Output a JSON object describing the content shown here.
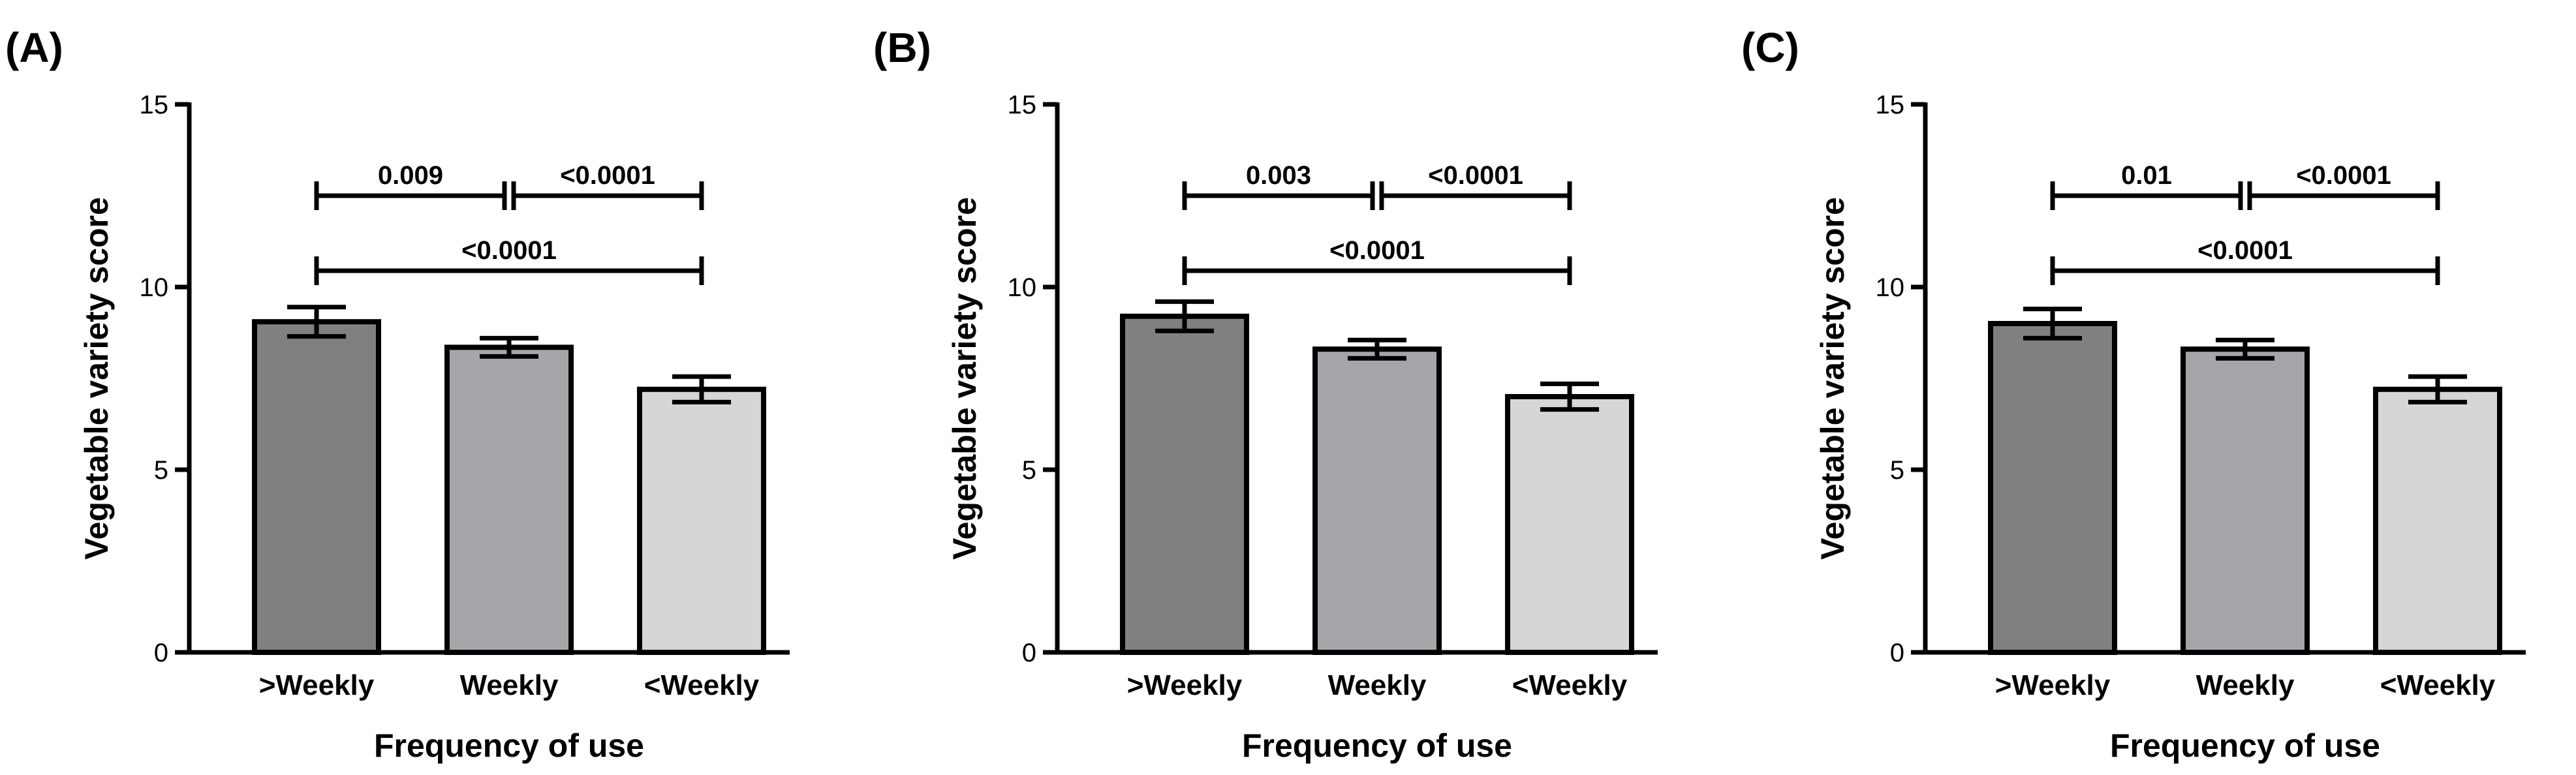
{
  "chart_data": [
    {
      "type": "bar",
      "panel": "(A)",
      "categories": [
        ">Weekly",
        "Weekly",
        "<Weekly"
      ],
      "values": [
        9.05,
        8.35,
        7.2
      ],
      "errors": [
        0.4,
        0.25,
        0.35
      ],
      "colors": [
        "#808080",
        "#a5a5aa",
        "#d6d6d6"
      ],
      "xlabel": "Frequency of use",
      "ylabel": "Vegetable variety score",
      "ylim": [
        0,
        15
      ],
      "yticks": [
        "0",
        "5",
        "10",
        "15"
      ],
      "comparisons": [
        {
          "from": 0,
          "to": 1,
          "label": "0.009",
          "row": 1
        },
        {
          "from": 1,
          "to": 2,
          "label": "<0.0001",
          "row": 1
        },
        {
          "from": 0,
          "to": 2,
          "label": "<0.0001",
          "row": 0
        }
      ]
    },
    {
      "type": "bar",
      "panel": "(B)",
      "categories": [
        ">Weekly",
        "Weekly",
        "<Weekly"
      ],
      "values": [
        9.2,
        8.3,
        7.0
      ],
      "errors": [
        0.4,
        0.25,
        0.35
      ],
      "colors": [
        "#808080",
        "#a5a5aa",
        "#d6d6d6"
      ],
      "xlabel": "Frequency of use",
      "ylabel": "Vegetable variety score",
      "ylim": [
        0,
        15
      ],
      "yticks": [
        "0",
        "5",
        "10",
        "15"
      ],
      "comparisons": [
        {
          "from": 0,
          "to": 1,
          "label": "0.003",
          "row": 1
        },
        {
          "from": 1,
          "to": 2,
          "label": "<0.0001",
          "row": 1
        },
        {
          "from": 0,
          "to": 2,
          "label": "<0.0001",
          "row": 0
        }
      ]
    },
    {
      "type": "bar",
      "panel": "(C)",
      "categories": [
        ">Weekly",
        "Weekly",
        "<Weekly"
      ],
      "values": [
        9.0,
        8.3,
        7.2
      ],
      "errors": [
        0.4,
        0.25,
        0.35
      ],
      "colors": [
        "#808080",
        "#a5a5aa",
        "#d6d6d6"
      ],
      "xlabel": "Frequency of use",
      "ylabel": "Vegetable variety score",
      "ylim": [
        0,
        15
      ],
      "yticks": [
        "0",
        "5",
        "10",
        "15"
      ],
      "comparisons": [
        {
          "from": 0,
          "to": 1,
          "label": "0.01",
          "row": 1
        },
        {
          "from": 1,
          "to": 2,
          "label": "<0.0001",
          "row": 1
        },
        {
          "from": 0,
          "to": 2,
          "label": "<0.0001",
          "row": 0
        }
      ]
    }
  ]
}
